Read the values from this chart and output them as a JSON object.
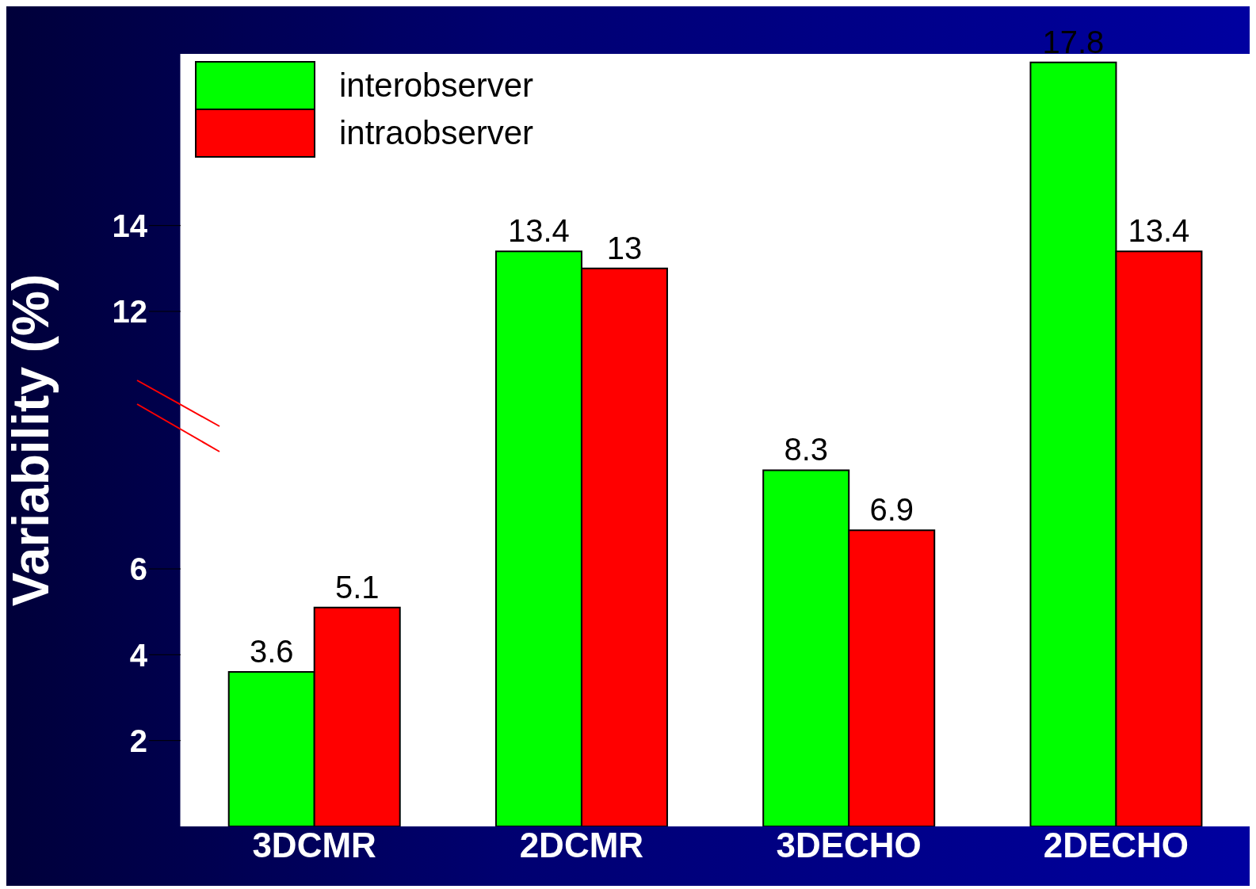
{
  "chart_data": {
    "type": "bar",
    "ylabel": "Variability (%)",
    "categories": [
      "3DCMR",
      "2DCMR",
      "3DECHO",
      "2DECHO"
    ],
    "series": [
      {
        "name": "interobserver",
        "color": "#00ff00",
        "values": [
          3.6,
          13.4,
          8.3,
          17.8
        ]
      },
      {
        "name": "intraobserver",
        "color": "#ff0000",
        "values": [
          5.1,
          13,
          6.9,
          13.4
        ]
      }
    ],
    "ylim": [
      0,
      18
    ],
    "yticks": [
      2,
      4,
      6,
      12,
      14
    ],
    "data_labels": true,
    "legend": "top left"
  }
}
